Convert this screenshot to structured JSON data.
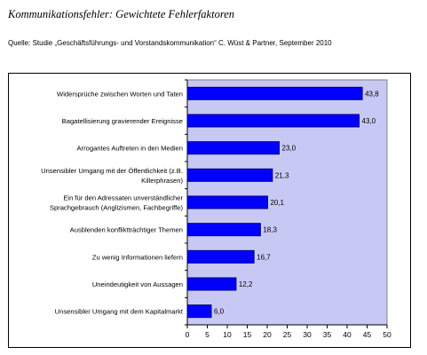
{
  "title": "Kommunikationsfehler: Gewichtete Fehlerfaktoren",
  "source": "Quelle: Studie „Geschäftsführungs- und Vorstandskommunikation“ C. Wüst & Partner, September 2010",
  "colors": {
    "plot_background": "#c8c8f5",
    "bar": "#0000ff",
    "bar_border": "#000080",
    "frame": "#000000"
  },
  "chart_data": {
    "type": "bar",
    "orientation": "horizontal",
    "title": "",
    "xlabel": "",
    "ylabel": "",
    "xlim": [
      0,
      50
    ],
    "x_ticks": [
      "0",
      "5",
      "10",
      "15",
      "20",
      "25",
      "30",
      "35",
      "40",
      "45",
      "50"
    ],
    "grid": false,
    "legend": "none",
    "categories": [
      [
        "Widersprüche zwischen Worten und Taten"
      ],
      [
        "Bagatellisierung gravierender Ereignisse"
      ],
      [
        "Arrogantes Auftreten in den Medien"
      ],
      [
        "Unsensibler Umgang mit der Öffentlichkeit (z.B.",
        "Killerphrasen)"
      ],
      [
        "Ein für den Adressaten unverständlicher",
        "Sprachgebrauch (Anglizismen, Fachbegriffe)"
      ],
      [
        "Ausblenden konfliktträchtiger Themen"
      ],
      [
        "Zu wenig Informationen liefern"
      ],
      [
        "Uneindeutigkeit von Aussagen"
      ],
      [
        "Unsensibler Umgang mit dem Kapitalmarkt"
      ]
    ],
    "values": [
      43.8,
      43.0,
      23.0,
      21.3,
      20.1,
      18.3,
      16.7,
      12.2,
      6.0
    ],
    "value_labels": [
      "43,8",
      "43,0",
      "23,0",
      "21,3",
      "20,1",
      "18,3",
      "16,7",
      "12,2",
      "6,0"
    ]
  }
}
